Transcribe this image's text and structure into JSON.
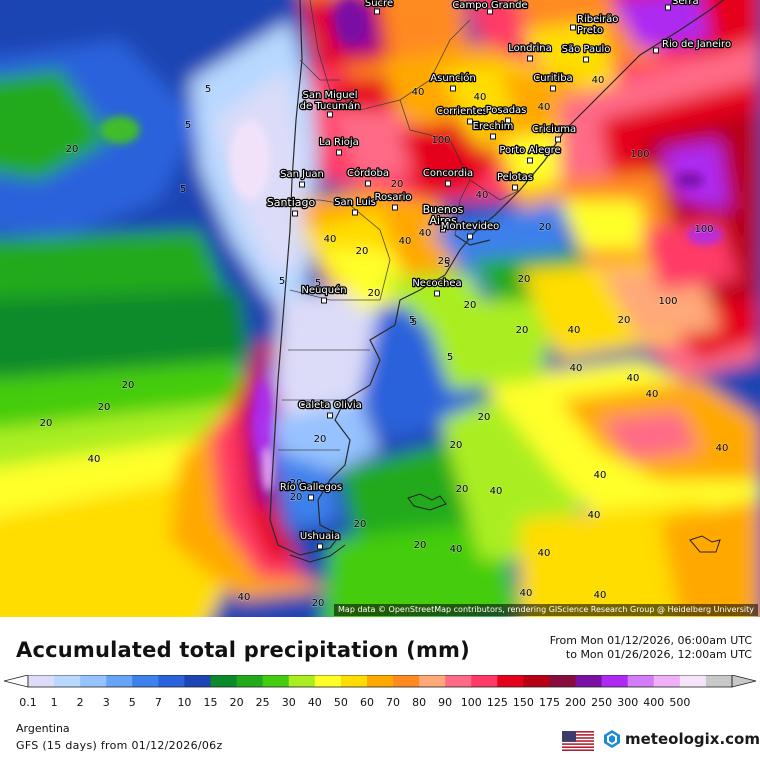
{
  "map": {
    "attribution": "Map data © OpenStreetMap contributors, rendering GIScience Research Group @ Heidelberg University",
    "cities": [
      {
        "name": "Sucre"
      },
      {
        "name": "Campo Grande"
      },
      {
        "name": "Ribeirão Preto"
      },
      {
        "name": "Serra"
      },
      {
        "name": "Londrina"
      },
      {
        "name": "São Paulo"
      },
      {
        "name": "Rio de Janeiro"
      },
      {
        "name": "Asunción"
      },
      {
        "name": "Curitiba"
      },
      {
        "name": "San Miguel de Tucumán"
      },
      {
        "name": "Corrientes"
      },
      {
        "name": "Posadas"
      },
      {
        "name": "Erechim"
      },
      {
        "name": "Criciuma"
      },
      {
        "name": "La Rioja"
      },
      {
        "name": "Porto Alegre"
      },
      {
        "name": "San Juan"
      },
      {
        "name": "Córdoba"
      },
      {
        "name": "Concordia"
      },
      {
        "name": "Pelotas"
      },
      {
        "name": "Santiago"
      },
      {
        "name": "San Luis"
      },
      {
        "name": "Rosario"
      },
      {
        "name": "Buenos Aires"
      },
      {
        "name": "Montevideo"
      },
      {
        "name": "Neuquén"
      },
      {
        "name": "Necochea"
      },
      {
        "name": "Caleta Olivia"
      },
      {
        "name": "Río Gallegos"
      },
      {
        "name": "Ushuaia"
      }
    ],
    "contour_labels": [
      "5",
      "20",
      "5",
      "20",
      "40",
      "20",
      "40",
      "20",
      "20",
      "40",
      "100",
      "40",
      "20",
      "5",
      "20",
      "20",
      "40",
      "40",
      "40",
      "40",
      "5",
      "20",
      "40",
      "40",
      "20",
      "20",
      "100",
      "100",
      "20",
      "5",
      "5",
      "20",
      "20",
      "40",
      "40",
      "40",
      "100",
      "20",
      "40",
      "40",
      "40",
      "20",
      "20",
      "20",
      "40",
      "40",
      "40",
      "40",
      "20",
      "20",
      "20",
      "40",
      "40",
      "20",
      "5",
      "5",
      "5"
    ]
  },
  "header": {
    "title": "Accumulated total precipitation (mm)",
    "period_from": "From Mon 01/12/2026, 06:00am UTC",
    "period_to": "to Mon 01/26/2026, 12:00am UTC"
  },
  "legend": {
    "ticks": [
      "0.1",
      "1",
      "2",
      "3",
      "5",
      "7",
      "10",
      "15",
      "20",
      "25",
      "30",
      "40",
      "50",
      "60",
      "70",
      "80",
      "90",
      "100",
      "125",
      "150",
      "175",
      "200",
      "250",
      "300",
      "400",
      "500"
    ],
    "colors": [
      "#dcdcf8",
      "#b8d8ff",
      "#96c2ff",
      "#68a4f6",
      "#3e80ec",
      "#2a62dc",
      "#1d45b4",
      "#0a8a2a",
      "#22aa1c",
      "#44cc10",
      "#aaee22",
      "#ffff2a",
      "#ffdd00",
      "#ffa800",
      "#ff8a20",
      "#ffa878",
      "#ff6a86",
      "#ff3a66",
      "#e5001a",
      "#b80014",
      "#880c3c",
      "#7a11a4",
      "#ad2af0",
      "#d27cf8",
      "#f0b0f8",
      "#f6e4fa",
      "#c8c8c8"
    ]
  },
  "footer": {
    "region": "Argentina",
    "model": "GFS (15 days) from  01/12/2026/06z",
    "brand": "meteologix.com"
  },
  "icons": {
    "flag": "us-flag-icon",
    "logo": "meteologix-logo-icon"
  }
}
